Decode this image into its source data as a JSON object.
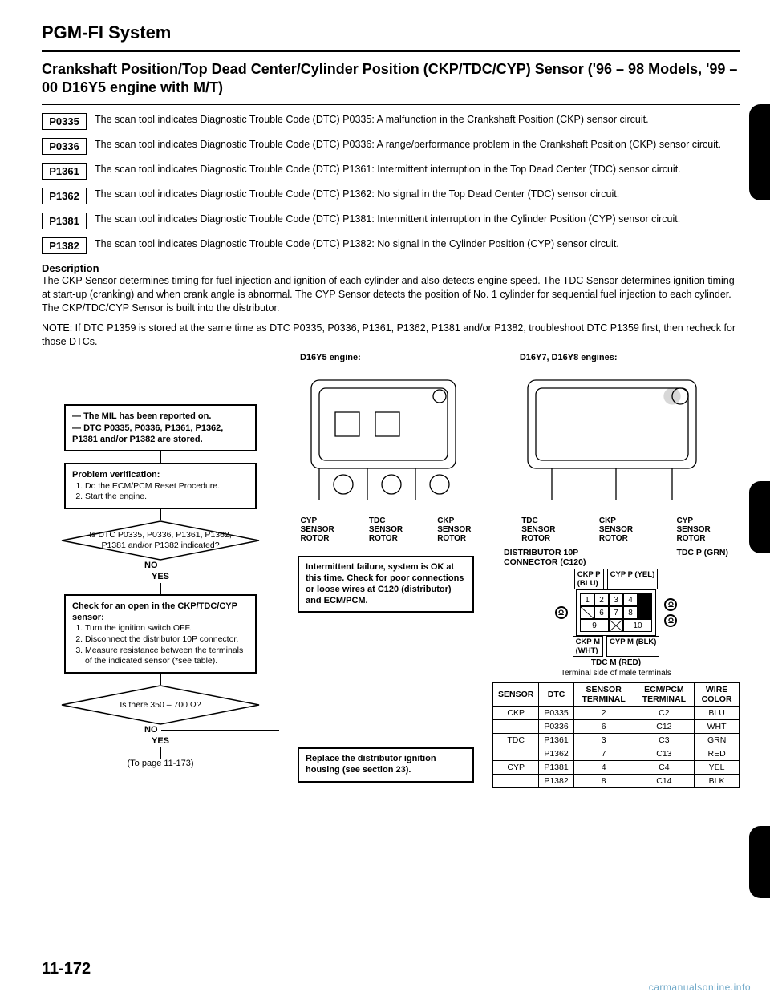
{
  "page": {
    "title": "PGM-FI System",
    "number": "11-172",
    "watermark": "carmanualsonline.info"
  },
  "section_head": "Crankshaft Position/Top Dead Center/Cylinder Position (CKP/TDC/CYP) Sensor ('96 – 98 Models, '99 – 00 D16Y5 engine with M/T)",
  "dtc": [
    {
      "code": "P0335",
      "text": "The scan tool indicates Diagnostic Trouble Code (DTC) P0335: A malfunction in the Crankshaft Position (CKP) sensor circuit."
    },
    {
      "code": "P0336",
      "text": "The scan tool indicates Diagnostic Trouble Code (DTC) P0336: A range/performance problem in the Crankshaft Position (CKP) sensor circuit."
    },
    {
      "code": "P1361",
      "text": "The scan tool indicates Diagnostic Trouble Code (DTC) P1361: Intermittent interruption in the Top Dead Center (TDC) sensor circuit."
    },
    {
      "code": "P1362",
      "text": "The scan tool indicates Diagnostic Trouble Code (DTC) P1362: No signal in the Top Dead Center (TDC) sensor circuit."
    },
    {
      "code": "P1381",
      "text": "The scan tool indicates Diagnostic Trouble Code (DTC) P1381: Intermittent interruption in the Cylinder Position (CYP) sensor circuit."
    },
    {
      "code": "P1382",
      "text": "The scan tool indicates Diagnostic Trouble Code (DTC) P1382: No signal in the Cylinder Position (CYP) sensor circuit."
    }
  ],
  "description": {
    "heading": "Description",
    "body": "The CKP Sensor determines timing for fuel injection and ignition of each cylinder and also detects engine speed. The TDC Sensor determines ignition timing at start-up (cranking) and when crank angle is abnormal. The CYP Sensor detects the position of No. 1 cylinder for sequential fuel injection to each cylinder. The CKP/TDC/CYP Sensor is built into the distributor."
  },
  "note": "NOTE: If DTC P1359 is stored at the same time as DTC P0335, P0336, P1361, P1362, P1381 and/or P1382, troubleshoot DTC P1359 first, then recheck for those DTCs.",
  "engine_labels": {
    "left": "D16Y5 engine:",
    "right": "D16Y7, D16Y8 engines:"
  },
  "flow": {
    "start_lines": [
      "The MIL has been reported on.",
      "DTC P0335, P0336, P1361, P1362, P1381 and/or P1382 are stored."
    ],
    "verify_head": "Problem verification:",
    "verify_steps": [
      "Do the ECM/PCM Reset Procedure.",
      "Start the engine."
    ],
    "decision1": "Is DTC P0335, P0336, P1361, P1362, P1381 and/or P1382 indicated?",
    "decision1_no": "Intermittent failure, system is OK at this time. Check for poor connections or loose wires at C120 (distributor) and ECM/PCM.",
    "yes": "YES",
    "no": "NO",
    "check_head": "Check for an open in the CKP/TDC/CYP sensor:",
    "check_steps": [
      "Turn the ignition switch OFF.",
      "Disconnect the distributor 10P connector.",
      "Measure resistance between the terminals of the indicated sensor (*see table)."
    ],
    "decision2": "Is there 350 – 700 Ω?",
    "decision2_no": "Replace the distributor ignition housing (see section 23).",
    "to_page": "(To page 11-173)"
  },
  "sensor_labels": {
    "left": {
      "cyp": "CYP\nSENSOR\nROTOR",
      "tdc": "TDC\nSENSOR\nROTOR",
      "ckp": "CKP\nSENSOR\nROTOR"
    },
    "right": {
      "tdc": "TDC\nSENSOR\nROTOR",
      "ckp": "CKP\nSENSOR\nROTOR",
      "cyp": "CYP\nSENSOR\nROTOR"
    }
  },
  "connector": {
    "title_left": "DISTRIBUTOR 10P\nCONNECTOR (C120)",
    "title_right": "TDC P (GRN)",
    "ckp_p": "CKP P\n(BLU)",
    "cyp_p": "CYP P (YEL)",
    "ckp_m": "CKP M\n(WHT)",
    "cyp_m": "CYP M (BLK)",
    "tdc_m": "TDC M (RED)",
    "terminal_note": "Terminal side of male terminals",
    "pins": [
      "1",
      "2",
      "3",
      "4",
      "",
      "6",
      "7",
      "8",
      "9",
      "",
      "10"
    ]
  },
  "table": {
    "headers": [
      "SENSOR",
      "DTC",
      "SENSOR TERMINAL",
      "ECM/PCM TERMINAL",
      "WIRE COLOR"
    ],
    "rows": [
      [
        "CKP",
        "P0335",
        "2",
        "C2",
        "BLU"
      ],
      [
        "",
        "P0336",
        "6",
        "C12",
        "WHT"
      ],
      [
        "TDC",
        "P1361",
        "3",
        "C3",
        "GRN"
      ],
      [
        "",
        "P1362",
        "7",
        "C13",
        "RED"
      ],
      [
        "CYP",
        "P1381",
        "4",
        "C4",
        "YEL"
      ],
      [
        "",
        "P1382",
        "8",
        "C14",
        "BLK"
      ]
    ]
  }
}
